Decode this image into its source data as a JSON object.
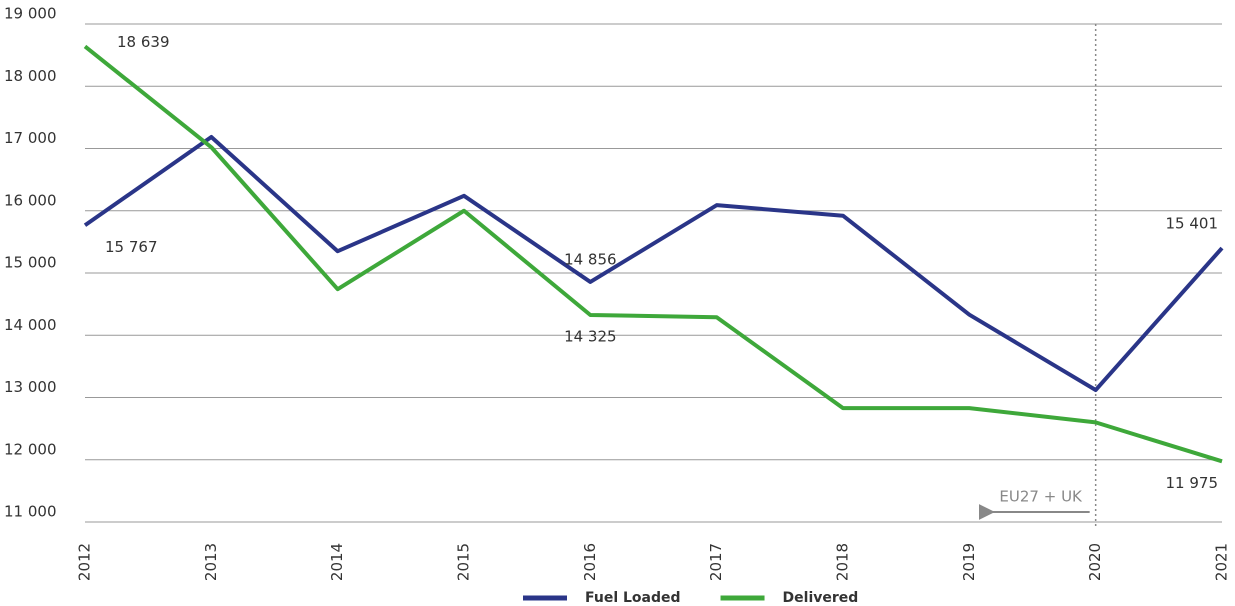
{
  "chart_data": {
    "type": "line",
    "categories": [
      "2012",
      "2013",
      "2014",
      "2015",
      "2016",
      "2017",
      "2018",
      "2019",
      "2020",
      "2021"
    ],
    "series": [
      {
        "name": "Fuel Loaded",
        "color": "#2a3588",
        "values": [
          15767,
          17185,
          15350,
          16240,
          14856,
          16090,
          15920,
          14330,
          13120,
          15401
        ],
        "value_labels": [
          "15 767",
          null,
          null,
          null,
          "14 856",
          null,
          null,
          null,
          null,
          "15 401"
        ]
      },
      {
        "name": "Delivered",
        "color": "#3ea83a",
        "values": [
          18639,
          17020,
          14740,
          16000,
          14325,
          14290,
          12830,
          12830,
          12600,
          11975
        ],
        "value_labels": [
          "18 639",
          null,
          null,
          null,
          "14 325",
          null,
          null,
          null,
          null,
          "11 975"
        ]
      }
    ],
    "ylim": [
      11000,
      19000
    ],
    "yticks": [
      {
        "value": 11000,
        "label": "11 000"
      },
      {
        "value": 12000,
        "label": "12 000"
      },
      {
        "value": 13000,
        "label": "13 000"
      },
      {
        "value": 14000,
        "label": "14 000"
      },
      {
        "value": 15000,
        "label": "15 000"
      },
      {
        "value": 16000,
        "label": "16 000"
      },
      {
        "value": 17000,
        "label": "17 000"
      },
      {
        "value": 18000,
        "label": "18 000"
      },
      {
        "value": 19000,
        "label": "19 000"
      }
    ],
    "grid": true,
    "annotation": {
      "text": "EU27 + UK",
      "at": "2020"
    },
    "legend": "bottom"
  }
}
